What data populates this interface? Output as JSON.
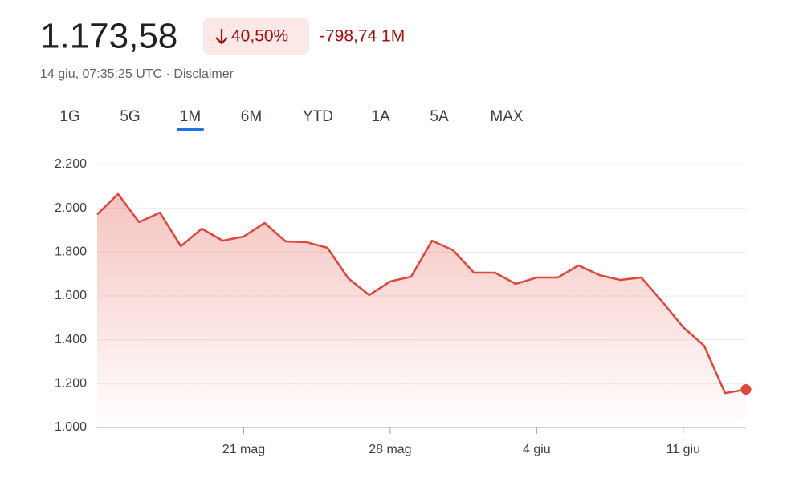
{
  "header": {
    "price": "1.173,58",
    "change_percent": "40,50%",
    "change_value": "-798,74 1M",
    "timestamp": "14 giu, 07:35:25 UTC",
    "disclaimer": "Disclaimer"
  },
  "tabs": {
    "items": [
      "1G",
      "5G",
      "1M",
      "6M",
      "YTD",
      "1A",
      "5A",
      "MAX"
    ],
    "selected": "1M"
  },
  "chart_data": {
    "type": "line",
    "color": "#e0463a",
    "grid": true,
    "x": [
      0,
      1,
      2,
      3,
      4,
      5,
      6,
      7,
      8,
      9,
      10,
      11,
      12,
      13,
      14,
      15,
      16,
      17,
      18,
      19,
      20,
      21,
      22,
      23,
      24,
      25,
      26,
      27,
      28,
      29,
      30,
      31
    ],
    "series": [
      {
        "name": null,
        "color": "#e0463a",
        "values": [
          1972,
          2065,
          1937,
          1980,
          1827,
          1907,
          1852,
          1871,
          1933,
          1849,
          1845,
          1820,
          1680,
          1604,
          1666,
          1688,
          1852,
          1809,
          1706,
          1706,
          1655,
          1684,
          1684,
          1739,
          1695,
          1673,
          1684,
          1574,
          1457,
          1373,
          1157,
          1173.58
        ]
      }
    ],
    "xlim": [
      0,
      31
    ],
    "xticks": [
      {
        "value": 7,
        "label": "21 mag"
      },
      {
        "value": 14,
        "label": "28 mag"
      },
      {
        "value": 21,
        "label": "4 giu"
      },
      {
        "value": 28,
        "label": "11 giu"
      }
    ],
    "ylim": [
      1000,
      2200
    ],
    "yticks": [
      {
        "value": 1000,
        "label": "1.000"
      },
      {
        "value": 1200,
        "label": "1.200"
      },
      {
        "value": 1400,
        "label": "1.400"
      },
      {
        "value": 1600,
        "label": "1.600"
      },
      {
        "value": 1800,
        "label": "1.800"
      },
      {
        "value": 2000,
        "label": "2.000"
      },
      {
        "value": 2200,
        "label": "2.200"
      }
    ]
  }
}
